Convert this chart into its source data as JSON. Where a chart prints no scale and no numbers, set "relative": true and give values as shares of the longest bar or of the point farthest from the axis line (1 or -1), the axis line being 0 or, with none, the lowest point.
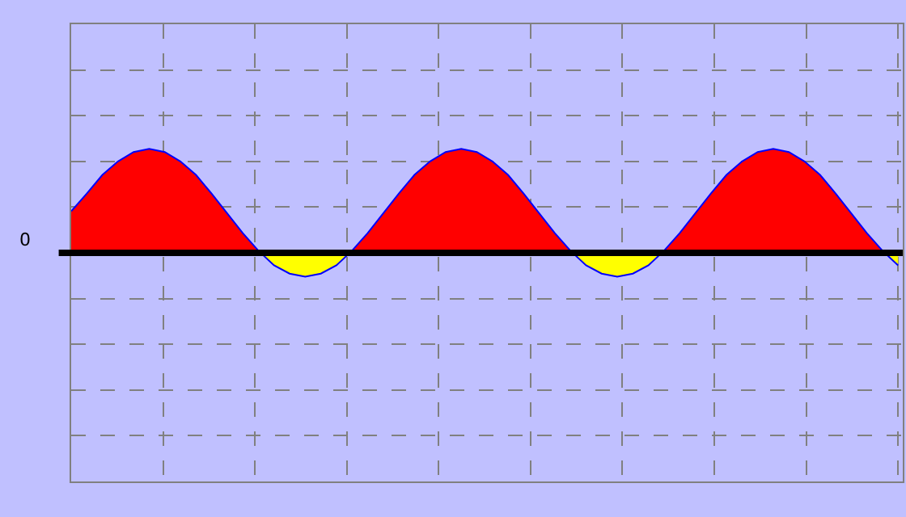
{
  "chart_data": {
    "type": "area",
    "relative": true,
    "grid": true,
    "tick_labels": false,
    "marker": "none",
    "line_style": "solid",
    "categories": [
      null,
      null,
      null,
      null,
      null,
      null,
      null,
      null,
      null,
      null,
      null,
      null,
      null,
      null,
      null,
      null,
      null,
      null,
      null,
      null,
      null,
      null,
      null,
      null,
      null,
      null,
      null,
      null,
      null,
      null,
      null,
      null,
      null,
      null,
      null,
      null,
      null,
      null,
      null,
      null,
      null,
      null,
      null,
      null,
      null,
      null,
      null,
      null,
      null,
      null,
      null,
      null,
      null,
      null
    ],
    "series": [
      {
        "color": "#0000ff",
        "colors": [
          "#ff0000",
          "#ff0000",
          "#ff0000",
          "#ff0000",
          "#ff0000",
          "#ff0000",
          "#ff0000",
          "#ff0000",
          "#ff0000",
          "#ff0000",
          "#ff0000",
          "#ff0000",
          "#ff0000",
          "#ffff00",
          "#ffff00",
          "#ffff00",
          "#ffff00",
          "#ffff00",
          "#ff0000",
          "#ff0000",
          "#ff0000",
          "#ff0000",
          "#ff0000",
          "#ff0000",
          "#ff0000",
          "#ff0000",
          "#ff0000",
          "#ff0000",
          "#ff0000",
          "#ff0000",
          "#ff0000",
          "#ff0000",
          "#ff0000",
          "#ffff00",
          "#ffff00",
          "#ffff00",
          "#ffff00",
          "#ffff00",
          "#ff0000",
          "#ff0000",
          "#ff0000",
          "#ff0000",
          "#ff0000",
          "#ff0000",
          "#ff0000",
          "#ff0000",
          "#ff0000",
          "#ff0000",
          "#ff0000",
          "#ff0000",
          "#ff0000",
          "#ff0000",
          "#ff0000",
          "#ffff00"
        ],
        "values": [
          0.4,
          0.57,
          0.75,
          0.88,
          0.97,
          1,
          0.97,
          0.88,
          0.75,
          0.57,
          0.38,
          0.19,
          0.02,
          -0.12,
          -0.2,
          -0.23,
          -0.2,
          -0.12,
          0.02,
          0.19,
          0.38,
          0.57,
          0.75,
          0.88,
          0.97,
          1,
          0.97,
          0.88,
          0.75,
          0.57,
          0.38,
          0.19,
          0.02,
          -0.12,
          -0.2,
          -0.23,
          -0.2,
          -0.12,
          0.02,
          0.19,
          0.38,
          0.57,
          0.75,
          0.88,
          0.97,
          1,
          0.97,
          0.88,
          0.75,
          0.57,
          0.38,
          0.19,
          0.02,
          -0.12
        ]
      }
    ],
    "ref_lines": [
      {
        "axis": "y",
        "value": 0,
        "label": "0",
        "color": "#000000"
      }
    ]
  }
}
